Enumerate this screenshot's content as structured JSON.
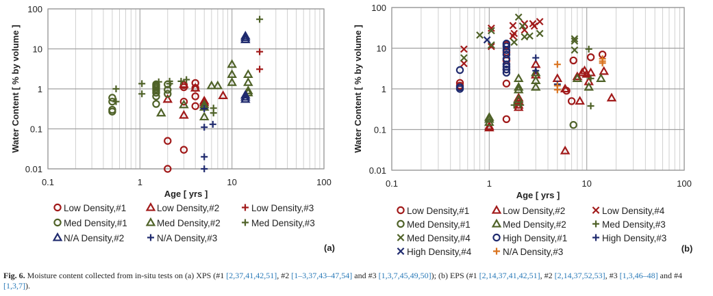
{
  "chart_data": [
    {
      "type": "scatter",
      "panel_label": "(a)",
      "xlabel": "Age [ yrs ]",
      "ylabel": "Water Content [ % by volume ]",
      "xscale": "log",
      "yscale": "log",
      "xlim": [
        0.1,
        100
      ],
      "ylim": [
        0.01,
        100
      ],
      "xticks": [
        "0.1",
        "1",
        "10",
        "100"
      ],
      "yticks": [
        "0.01",
        "0.1",
        "1",
        "10",
        "100"
      ],
      "grid": true,
      "legend_position": "bottom",
      "series": [
        {
          "name": "Low Density,#1",
          "marker": "circle",
          "color": "#a11a1a",
          "x": [
            2,
            2,
            3,
            3,
            3,
            3,
            4,
            4,
            4,
            4
          ],
          "y": [
            0.05,
            0.01,
            0.03,
            0.48,
            1.1,
            1.25,
            1.4,
            0.65,
            0.37,
            1.05
          ]
        },
        {
          "name": "Low Density,#2",
          "marker": "triangle",
          "color": "#a11a1a",
          "x": [
            2,
            3,
            3,
            4,
            5,
            5,
            8
          ],
          "y": [
            0.55,
            1.3,
            0.22,
            1.05,
            0.5,
            0.45,
            0.68
          ]
        },
        {
          "name": "Low Density,#3",
          "marker": "plus",
          "color": "#a11a1a",
          "x": [
            20,
            20
          ],
          "y": [
            8.5,
            3.1
          ]
        },
        {
          "name": "Med Density,#1",
          "marker": "circle",
          "color": "#4f6228",
          "x": [
            0.5,
            0.5,
            0.5,
            0.5,
            1.5,
            1.5,
            1.5,
            1.5,
            1.5,
            1.5,
            1.5,
            1.5,
            2,
            2,
            2
          ],
          "y": [
            0.6,
            0.48,
            0.3,
            0.27,
            1.3,
            1.2,
            1.1,
            1.0,
            0.9,
            0.8,
            0.65,
            0.42,
            1.3,
            0.95,
            0.75
          ]
        },
        {
          "name": "Med Density,#2",
          "marker": "triangle",
          "color": "#4f6228",
          "x": [
            1.7,
            3,
            5,
            5,
            5,
            6,
            7,
            10,
            10,
            10,
            15,
            15,
            15,
            15
          ],
          "y": [
            0.25,
            0.4,
            0.35,
            0.4,
            0.2,
            1.2,
            1.2,
            4.1,
            2.3,
            1.45,
            2.3,
            1.45,
            0.9,
            0.8
          ]
        },
        {
          "name": "Med Density,#3",
          "marker": "plus",
          "color": "#4f6228",
          "x": [
            0.55,
            0.55,
            1.05,
            1.05,
            1.6,
            2.1,
            2.1,
            2.8,
            3.2,
            6.3,
            6.3,
            20
          ],
          "y": [
            1.0,
            0.48,
            1.35,
            0.75,
            1.5,
            1.55,
            1.35,
            1.55,
            1.7,
            0.33,
            0.25,
            55
          ]
        },
        {
          "name": "N/A Density,#2",
          "marker": "triangle",
          "color": "#1f2a6e",
          "x": [
            14,
            14,
            14,
            14,
            14,
            14
          ],
          "y": [
            21,
            19,
            17,
            0.7,
            0.62,
            0.55
          ]
        },
        {
          "name": "N/A Density,#3",
          "marker": "plus",
          "color": "#1f2a6e",
          "x": [
            5,
            5,
            5,
            5,
            6.2
          ],
          "y": [
            0.32,
            0.11,
            0.02,
            0.01,
            0.13
          ]
        }
      ]
    },
    {
      "type": "scatter",
      "panel_label": "(b)",
      "xlabel": "Age [ yrs ]",
      "ylabel": "Water Content [ % by volume ]",
      "xscale": "log",
      "yscale": "log",
      "xlim": [
        0.1,
        100
      ],
      "ylim": [
        0.01,
        100
      ],
      "xticks": [
        "0.1",
        "1",
        "10",
        "100"
      ],
      "yticks": [
        "0.01",
        "0.1",
        "1",
        "10",
        "100"
      ],
      "grid": true,
      "legend_position": "bottom",
      "series": [
        {
          "name": "Low Density,#1",
          "marker": "circle",
          "color": "#a11a1a",
          "x": [
            0.5,
            0.5,
            1.5,
            1.5,
            1.5,
            1.5,
            1.5,
            1.5,
            6.2,
            7,
            7.3,
            11,
            14.5
          ],
          "y": [
            1.4,
            1.2,
            1.35,
            0.18,
            12,
            8,
            5,
            3,
            0.9,
            0.5,
            5,
            6,
            7
          ]
        },
        {
          "name": "Low Density,#2",
          "marker": "triangle",
          "color": "#a11a1a",
          "x": [
            1,
            1,
            2,
            2,
            2,
            2,
            3,
            3,
            5,
            6,
            6,
            8,
            8.5,
            9,
            9.5,
            10,
            10.5,
            11,
            15,
            18
          ],
          "y": [
            0.11,
            0.12,
            0.6,
            0.5,
            0.4,
            0.35,
            4,
            2.2,
            1.8,
            1.0,
            0.03,
            2.0,
            0.5,
            2.5,
            2.8,
            2.3,
            1.5,
            2.5,
            2.7,
            0.6
          ]
        },
        {
          "name": "Low Density,#4",
          "marker": "x",
          "color": "#a11a1a",
          "x": [
            0.55,
            0.55,
            1.05,
            1.05,
            1.75,
            1.75,
            1.8,
            2.3,
            2.3,
            2.8,
            2.9,
            3.3
          ],
          "y": [
            9.5,
            4.2,
            31,
            11,
            36,
            20,
            23,
            40,
            28,
            40,
            35,
            45
          ]
        },
        {
          "name": "Med Density,#1",
          "marker": "circle",
          "color": "#4f6228",
          "x": [
            7.3
          ],
          "y": [
            0.13
          ]
        },
        {
          "name": "Med Density,#2",
          "marker": "triangle",
          "color": "#4f6228",
          "x": [
            1,
            1,
            1,
            2,
            2,
            2,
            2,
            3,
            3,
            3,
            8,
            10.5,
            14
          ],
          "y": [
            0.2,
            0.18,
            0.15,
            1.8,
            1.1,
            0.95,
            0.55,
            2.5,
            1.6,
            1.1,
            1.8,
            1.1,
            1.8
          ]
        },
        {
          "name": "Med Density,#3",
          "marker": "plus",
          "color": "#4f6228",
          "x": [
            1.8,
            2.1,
            10.5,
            11,
            11
          ],
          "y": [
            0.4,
            0.4,
            9.5,
            1.8,
            0.38
          ]
        },
        {
          "name": "Med Density,#4",
          "marker": "x",
          "color": "#4f6228",
          "x": [
            0.55,
            0.8,
            1.05,
            1.05,
            1.8,
            2,
            2.2,
            2.3,
            2.6,
            3.3,
            7.5,
            7.5,
            7.5
          ],
          "y": [
            5.8,
            21,
            27,
            12,
            14,
            58,
            35,
            19,
            20,
            23,
            17,
            15,
            9
          ]
        },
        {
          "name": "High Density,#1",
          "marker": "circle",
          "color": "#1f2a6e",
          "x": [
            0.5,
            0.5,
            0.5,
            1.5,
            1.5,
            1.5,
            1.5,
            1.5,
            1.5,
            1.5,
            1.5,
            1.5
          ],
          "y": [
            2.9,
            1.1,
            1.0,
            13,
            11,
            9,
            7,
            5.5,
            4,
            3.5,
            3,
            2.5
          ]
        },
        {
          "name": "High Density,#3",
          "marker": "plus",
          "color": "#1f2a6e",
          "x": [
            3,
            3,
            5
          ],
          "y": [
            5.8,
            2.8,
            1.3
          ]
        },
        {
          "name": "High Density,#4",
          "marker": "x",
          "color": "#1f2a6e",
          "x": [
            0.95
          ],
          "y": [
            16
          ]
        },
        {
          "name": "N/A Density,#3",
          "marker": "plus",
          "color": "#d9731f",
          "x": [
            5,
            5,
            5,
            14.5,
            14.5,
            14.5
          ],
          "y": [
            4,
            1.2,
            0.95,
            5.5,
            4.8,
            4.3
          ]
        }
      ]
    }
  ],
  "caption": {
    "fig_label": "Fig. 6.",
    "text_1": " Moisture content collected from in-situ tests on (a) XPS (#1 ",
    "ref_1": "[2,37,41,42,51]",
    "text_2": ", #2 ",
    "ref_2": "[1–3,37,43–47,54]",
    "text_3": " and #3 ",
    "ref_3": "[1,3,7,45,49,50]",
    "text_4": "); (b) EPS (#1 ",
    "ref_4": "[2,14,37,41,42,51]",
    "text_5": ", #2 ",
    "ref_5": "[2,14,37,52,53]",
    "text_6": ", #3 ",
    "ref_6": "[1,3,46–48]",
    "text_7": " and #4 ",
    "ref_7": "[1,3,7]",
    "text_8": ")."
  }
}
